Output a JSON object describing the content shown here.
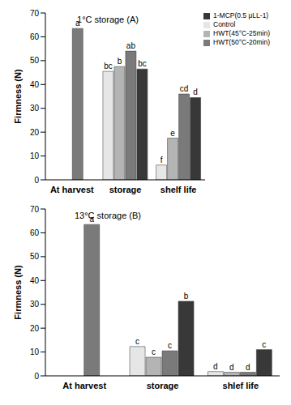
{
  "chart_data": [
    {
      "type": "bar",
      "title": "1°C storage (A)",
      "y_label": "Firmness (N)",
      "categories": [
        "At harvest",
        "storage",
        "shelf life"
      ],
      "ylim": [
        0,
        70
      ],
      "yticks": [
        0,
        10,
        20,
        30,
        40,
        50,
        60,
        70
      ],
      "grid": false,
      "legend": "upper right",
      "series": [
        {
          "name": "Control",
          "color": "#e6e6e6",
          "values": [
            null,
            45.5,
            6.2
          ],
          "letters": [
            null,
            "bc",
            "f"
          ]
        },
        {
          "name": "HWT(45°C-25min)",
          "color": "#b4b4b4",
          "values": [
            null,
            47.5,
            17.5
          ],
          "letters": [
            null,
            "b",
            "e"
          ]
        },
        {
          "name": "HWT(50°C-20min)",
          "color": "#7a7a7a",
          "values": [
            63.5,
            54,
            36
          ],
          "letters": [
            "a",
            "ab",
            "cd"
          ]
        },
        {
          "name": "1-MCP(0.5 μLL-1)",
          "color": "#383838",
          "values": [
            null,
            46.5,
            34.5
          ],
          "letters": [
            null,
            "bc",
            "d"
          ]
        }
      ]
    },
    {
      "type": "bar",
      "title": "13°C storage (B)",
      "y_label": "Firmness (N)",
      "categories": [
        "At harvest",
        "storage",
        "shlef life"
      ],
      "ylim": [
        0,
        70
      ],
      "yticks": [
        0,
        10,
        20,
        30,
        40,
        50,
        60,
        70
      ],
      "grid": false,
      "series": [
        {
          "name": "Control",
          "color": "#e6e6e6",
          "values": [
            null,
            12.3,
            1.8
          ],
          "letters": [
            null,
            "c",
            "d"
          ]
        },
        {
          "name": "HWT(45°C-25min)",
          "color": "#b4b4b4",
          "values": [
            null,
            7.8,
            1.5
          ],
          "letters": [
            null,
            "c",
            "d"
          ]
        },
        {
          "name": "HWT(50°C-20min)",
          "color": "#7a7a7a",
          "values": [
            63.5,
            10.5,
            1.5
          ],
          "letters": [
            "a",
            "c",
            "d"
          ]
        },
        {
          "name": "1-MCP(0.5 μLL-1)",
          "color": "#383838",
          "values": [
            null,
            31.3,
            11
          ],
          "letters": [
            null,
            "b",
            "c"
          ]
        }
      ]
    }
  ]
}
